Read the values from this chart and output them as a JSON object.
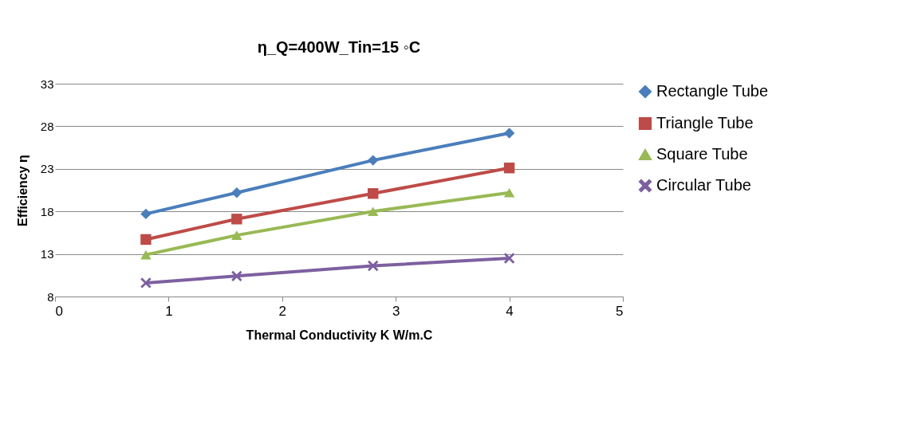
{
  "chart_data": {
    "type": "line",
    "title": "η_Q=400W_Tin=15 ◦C",
    "xlabel": "Thermal Conductivity K W/m.C",
    "ylabel": "Efficiency η",
    "x": [
      0.8,
      1.6,
      2.8,
      4
    ],
    "series": [
      {
        "name": "Rectangle Tube",
        "color": "#4a7ebb",
        "marker": "diamond",
        "values": [
          17.7,
          20.2,
          24.0,
          27.2
        ]
      },
      {
        "name": "Triangle Tube",
        "color": "#be4b48",
        "marker": "square",
        "values": [
          14.7,
          17.1,
          20.1,
          23.1
        ]
      },
      {
        "name": "Square Tube",
        "color": "#98b954",
        "marker": "triangle",
        "values": [
          12.9,
          15.2,
          18.0,
          20.2
        ]
      },
      {
        "name": "Circular Tube",
        "color": "#7d60a0",
        "marker": "cross",
        "values": [
          9.6,
          10.4,
          11.6,
          12.5
        ]
      }
    ],
    "xlim": [
      0,
      5
    ],
    "xticks": [
      0,
      1,
      2,
      3,
      4,
      5
    ],
    "ylim": [
      8,
      33
    ],
    "yticks": [
      8,
      13,
      18,
      23,
      28,
      33
    ],
    "grid": "y",
    "legend": "right",
    "line_style": "solid"
  }
}
